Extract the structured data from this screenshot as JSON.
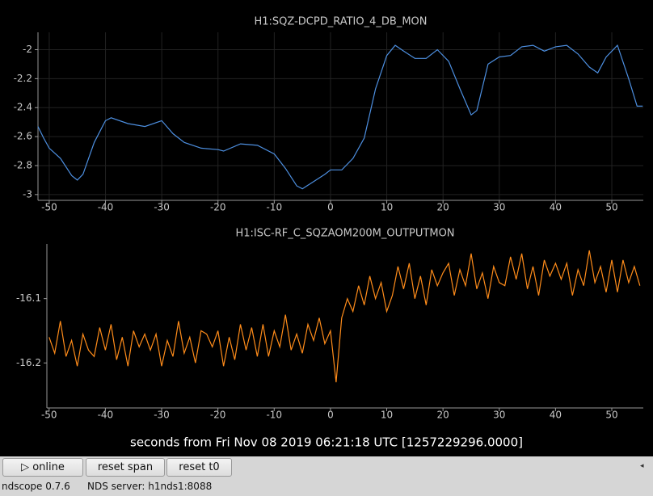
{
  "chart_data": [
    {
      "type": "line",
      "title": "H1:SQZ-DCPD_RATIO_4_DB_MON",
      "color": "#4d8fe0",
      "grid": true,
      "xlim": [
        -52,
        55.6
      ],
      "ylim": [
        -3.04,
        -1.88
      ],
      "xticks": [
        -50,
        -40,
        -30,
        -20,
        -10,
        0,
        10,
        20,
        30,
        40,
        50
      ],
      "yticks": [
        -3,
        -2.8,
        -2.6,
        -2.4,
        -2.2,
        -2
      ],
      "x": [
        -52,
        -51,
        -50,
        -48,
        -46,
        -45,
        -44,
        -42,
        -40,
        -39,
        -36,
        -33,
        -30,
        -28,
        -26,
        -23,
        -20,
        -19,
        -16,
        -13,
        -10,
        -8,
        -6,
        -5,
        -3,
        -1,
        0,
        2,
        4,
        6,
        8,
        10,
        11.5,
        13,
        15,
        17,
        19,
        21,
        23,
        25,
        26,
        28,
        30,
        32,
        34,
        36,
        38,
        40,
        42,
        44,
        46,
        47.5,
        49,
        51,
        53,
        54.5,
        55.5
      ],
      "values": [
        -2.53,
        -2.61,
        -2.68,
        -2.75,
        -2.87,
        -2.9,
        -2.86,
        -2.64,
        -2.49,
        -2.47,
        -2.51,
        -2.53,
        -2.49,
        -2.58,
        -2.64,
        -2.68,
        -2.69,
        -2.7,
        -2.65,
        -2.66,
        -2.72,
        -2.82,
        -2.94,
        -2.96,
        -2.91,
        -2.86,
        -2.83,
        -2.83,
        -2.75,
        -2.61,
        -2.27,
        -2.04,
        -1.97,
        -2.01,
        -2.06,
        -2.06,
        -2,
        -2.08,
        -2.27,
        -2.45,
        -2.42,
        -2.1,
        -2.05,
        -2.04,
        -1.98,
        -1.97,
        -2.01,
        -1.98,
        -1.97,
        -2.03,
        -2.12,
        -2.16,
        -2.05,
        -1.97,
        -2.2,
        -2.39,
        -2.39
      ]
    },
    {
      "type": "line",
      "title": "H1:ISC-RF_C_SQZAOM200M_OUTPUTMON",
      "color": "#ff8c1a",
      "grid": false,
      "xlim": [
        -50.4,
        55.6
      ],
      "ylim": [
        -16.27,
        -16.015
      ],
      "xticks": [
        -50,
        -40,
        -30,
        -20,
        -10,
        0,
        10,
        20,
        30,
        40,
        50
      ],
      "yticks": [
        -16.2,
        -16.1
      ],
      "x": [
        -50,
        -49,
        -48,
        -47,
        -46,
        -45,
        -44,
        -43,
        -42,
        -41,
        -40,
        -39,
        -38,
        -37,
        -36,
        -35,
        -34,
        -33,
        -32,
        -31,
        -30,
        -29,
        -28,
        -27,
        -26,
        -25,
        -24,
        -23,
        -22,
        -21,
        -20,
        -19,
        -18,
        -17,
        -16,
        -15,
        -14,
        -13,
        -12,
        -11,
        -10,
        -9,
        -8,
        -7,
        -6,
        -5,
        -4,
        -3,
        -2,
        -1,
        0,
        1,
        2,
        3,
        4,
        5,
        6,
        7,
        8,
        9,
        10,
        11,
        12,
        13,
        14,
        15,
        16,
        17,
        18,
        19,
        20,
        21,
        22,
        23,
        24,
        25,
        26,
        27,
        28,
        29,
        30,
        31,
        32,
        33,
        34,
        35,
        36,
        37,
        38,
        39,
        40,
        41,
        42,
        43,
        44,
        45,
        46,
        47,
        48,
        49,
        50,
        51,
        52,
        53,
        54,
        55
      ],
      "values": [
        -16.16,
        -16.185,
        -16.135,
        -16.19,
        -16.165,
        -16.205,
        -16.155,
        -16.18,
        -16.19,
        -16.145,
        -16.18,
        -16.14,
        -16.195,
        -16.16,
        -16.205,
        -16.15,
        -16.175,
        -16.155,
        -16.18,
        -16.155,
        -16.205,
        -16.165,
        -16.19,
        -16.135,
        -16.185,
        -16.16,
        -16.2,
        -16.15,
        -16.155,
        -16.175,
        -16.15,
        -16.205,
        -16.16,
        -16.195,
        -16.14,
        -16.18,
        -16.145,
        -16.19,
        -16.14,
        -16.19,
        -16.15,
        -16.175,
        -16.125,
        -16.18,
        -16.155,
        -16.185,
        -16.14,
        -16.165,
        -16.13,
        -16.17,
        -16.15,
        -16.23,
        -16.13,
        -16.1,
        -16.12,
        -16.08,
        -16.11,
        -16.065,
        -16.1,
        -16.075,
        -16.12,
        -16.095,
        -16.05,
        -16.085,
        -16.045,
        -16.1,
        -16.065,
        -16.11,
        -16.055,
        -16.08,
        -16.06,
        -16.045,
        -16.095,
        -16.055,
        -16.08,
        -16.03,
        -16.085,
        -16.06,
        -16.1,
        -16.05,
        -16.075,
        -16.08,
        -16.035,
        -16.07,
        -16.03,
        -16.085,
        -16.05,
        -16.095,
        -16.04,
        -16.065,
        -16.045,
        -16.07,
        -16.045,
        -16.095,
        -16.055,
        -16.08,
        -16.025,
        -16.075,
        -16.05,
        -16.09,
        -16.04,
        -16.09,
        -16.04,
        -16.075,
        -16.05,
        -16.08
      ]
    }
  ],
  "footer": "seconds from Fri Nov 08 2019 06:21:18 UTC [1257229296.0000]",
  "buttons": [
    "▷ online",
    "reset span",
    "reset t0"
  ],
  "status": {
    "version": "ndscope 0.7.6",
    "server": "NDS server: h1nds1:8088"
  }
}
